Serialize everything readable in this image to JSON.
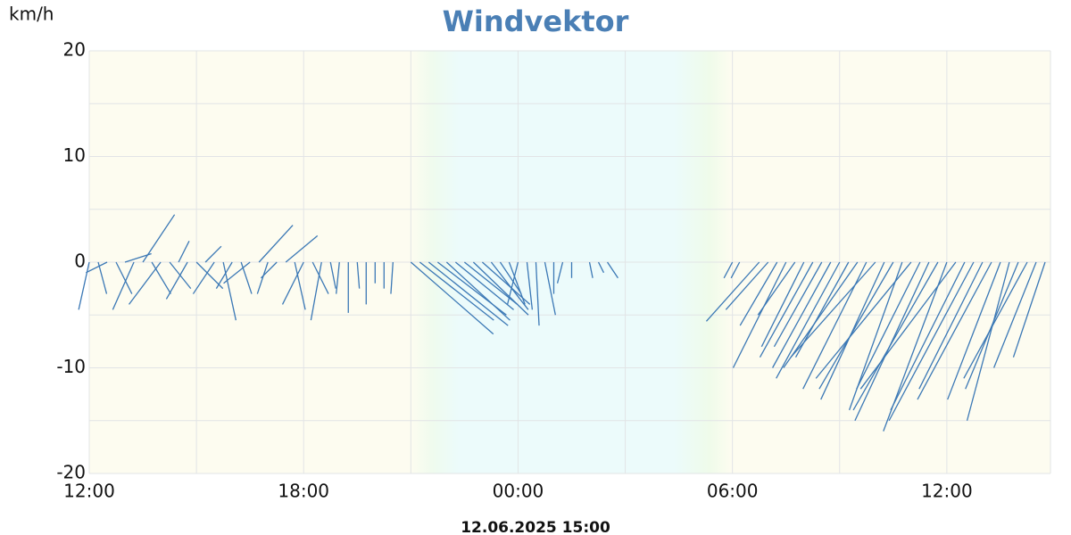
{
  "chart_data": {
    "type": "quiver",
    "title": "Windvektor",
    "y_label": "km/h",
    "footer": "12.06.2025 15:00",
    "color": "#3b78b5",
    "xlim": [
      0,
      26.9
    ],
    "ylim": [
      -20,
      20
    ],
    "xticks": [
      {
        "value": 0,
        "label": "12:00"
      },
      {
        "value": 6,
        "label": "18:00"
      },
      {
        "value": 12,
        "label": "00:00"
      },
      {
        "value": 18,
        "label": "06:00"
      },
      {
        "value": 24,
        "label": "12:00"
      }
    ],
    "yticks": [
      -20,
      -10,
      0,
      10,
      20
    ],
    "xgrid": [
      3,
      9,
      15,
      21
    ],
    "ygrid": [
      -15,
      -5,
      5,
      15
    ],
    "x": [
      0,
      0.25,
      0.5,
      0.75,
      1,
      1.25,
      1.5,
      1.75,
      2,
      2.25,
      2.5,
      2.75,
      3,
      3.25,
      3.5,
      3.75,
      4,
      4.25,
      4.5,
      4.75,
      5,
      5.25,
      5.5,
      5.75,
      6,
      6.25,
      6.5,
      6.75,
      7,
      7.25,
      7.5,
      7.75,
      8,
      8.25,
      8.5,
      9,
      9.25,
      9.5,
      9.75,
      10,
      10.25,
      10.5,
      10.75,
      11,
      11.25,
      11.5,
      11.75,
      12,
      12.25,
      12.5,
      12.75,
      13,
      13.25,
      13.5,
      14,
      14.25,
      14.5,
      18,
      18.2,
      18.75,
      19,
      19.25,
      19.5,
      19.75,
      20,
      20.25,
      20.5,
      20.75,
      21,
      21.25,
      21.5,
      21.75,
      22,
      22.25,
      22.5,
      22.75,
      23,
      23.25,
      23.5,
      23.75,
      24,
      24.25,
      24.5,
      24.75,
      25,
      25.25,
      25.5,
      25.75,
      26,
      26.25,
      26.5,
      26.75
    ],
    "u": [
      -1,
      0.8,
      -2,
      1.5,
      2.5,
      -2,
      3,
      1.8,
      -3,
      2,
      1,
      -2,
      2.5,
      1.5,
      -2,
      1.2,
      -1.5,
      1,
      -2.5,
      3.2,
      -1,
      -1.5,
      3,
      1,
      -2,
      1.5,
      -1,
      0.5,
      -0.3,
      0,
      0.2,
      0,
      0,
      0,
      -0.2,
      7.8,
      7,
      7.5,
      6.5,
      6,
      5.5,
      5,
      5.2,
      4.5,
      3.5,
      2,
      1.5,
      -1,
      0.5,
      0.3,
      1,
      0,
      -0.5,
      0,
      0.3,
      0.5,
      1,
      -0.8,
      -0.8,
      -5,
      -4,
      -3.5,
      -5,
      -3.5,
      -4,
      -5,
      -4.5,
      -5.5,
      -6,
      -5,
      -7,
      -6,
      -8,
      -6,
      -7,
      -5,
      -9,
      -6,
      -7,
      -8,
      -6,
      -9,
      -7,
      -8,
      -6,
      -7,
      -5,
      -4,
      -5,
      -6,
      -4,
      -3
    ],
    "v": [
      -4.5,
      -3,
      -1,
      -3,
      0.8,
      -4.5,
      4.5,
      -3,
      -4,
      -2.5,
      2,
      -3.5,
      -2.5,
      1.5,
      -3,
      -5.5,
      -2.5,
      -3,
      -2,
      3.5,
      -3,
      -1.5,
      2.5,
      -4.5,
      -4,
      -3,
      -5.5,
      -2.5,
      -3,
      -4.8,
      -2.5,
      -4,
      -2,
      -2.5,
      -3,
      -6.8,
      -5.5,
      -6,
      -5,
      -5.5,
      -4.5,
      -4,
      -5,
      -4,
      -4.5,
      -3,
      -4,
      -4,
      -4.5,
      -6,
      -5,
      -3,
      -2,
      -1.5,
      -1.5,
      -1,
      -1.5,
      -1.5,
      -1.5,
      -5.6,
      -4.5,
      -6,
      -10,
      -5,
      -8,
      -9,
      -8,
      -10,
      -11,
      -9,
      -10,
      -12,
      -9,
      -13,
      -12,
      -14,
      -11,
      -12,
      -15,
      -14,
      -16,
      -12,
      -14,
      -15,
      -12,
      -13,
      -13,
      -15,
      -12,
      -11,
      -10,
      -9
    ]
  }
}
